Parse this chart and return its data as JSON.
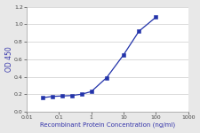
{
  "x": [
    0.031,
    0.063,
    0.125,
    0.25,
    0.5,
    1.0,
    3.0,
    10.0,
    30.0,
    100.0
  ],
  "y": [
    0.16,
    0.175,
    0.18,
    0.185,
    0.2,
    0.23,
    0.39,
    0.65,
    0.92,
    1.08
  ],
  "line_color": "#2233aa",
  "marker_color": "#2233aa",
  "marker_style": "s",
  "marker_size": 2.8,
  "line_width": 0.9,
  "xlabel": "Recombinant Protein Concentration (ng/ml)",
  "ylabel": "OD 450",
  "xlim": [
    0.01,
    1000
  ],
  "ylim": [
    0.0,
    1.2
  ],
  "yticks": [
    0.0,
    0.2,
    0.4,
    0.6,
    0.8,
    1.0,
    1.2
  ],
  "xticks": [
    0.01,
    0.1,
    1,
    10,
    100,
    1000
  ],
  "xticklabels": [
    "0.01",
    "0.1",
    "1",
    "10",
    "100",
    "1000"
  ],
  "xlabel_fontsize": 5.0,
  "ylabel_fontsize": 5.5,
  "tick_fontsize": 4.5,
  "background_color": "#e8e8e8",
  "plot_bg_color": "#ffffff",
  "grid_color": "#cccccc",
  "spine_color": "#999999",
  "label_color": "#3333aa"
}
